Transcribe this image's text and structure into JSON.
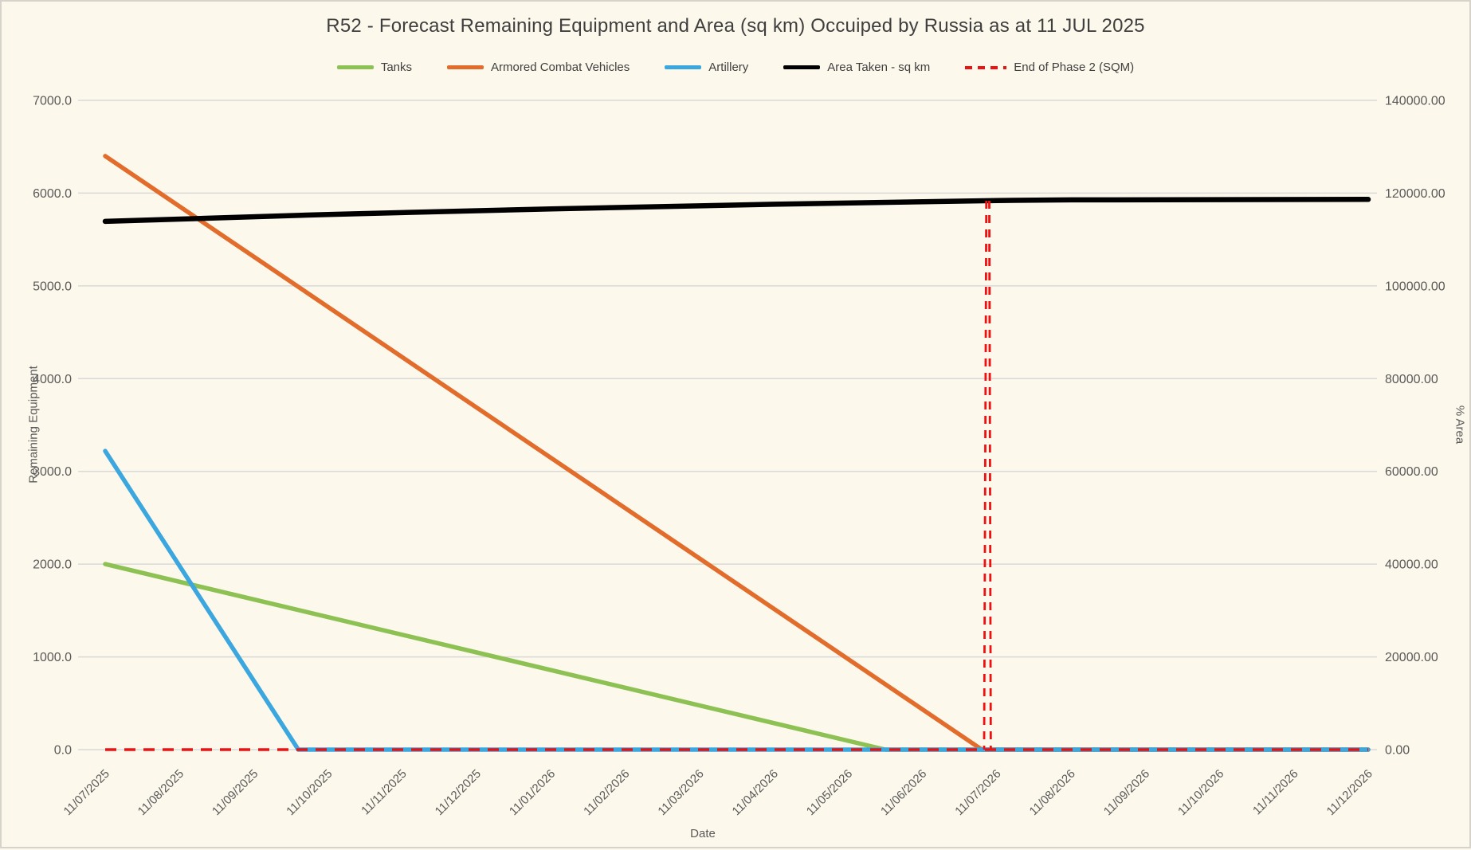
{
  "theme": {
    "background": "#fdf8ec",
    "border": "#d6d3cc",
    "grid": "#d9d9d9",
    "tick_text": "#595959",
    "title_text": "#3f3f3f",
    "marker_red": "#ee1111"
  },
  "chart_data": {
    "type": "line",
    "title": "R52 - Forecast Remaining Equipment and Area (sq km) Occuiped by Russia as at 11 JUL 2025",
    "xlabel": "Date",
    "ylabel_left": "Remaining Equipment",
    "ylabel_right": "% Area",
    "grid": true,
    "legend_position": "top",
    "x_categories": [
      "11/07/2025",
      "11/08/2025",
      "11/09/2025",
      "11/10/2025",
      "11/11/2025",
      "11/12/2025",
      "11/01/2026",
      "11/02/2026",
      "11/03/2026",
      "11/04/2026",
      "11/05/2026",
      "11/06/2026",
      "11/07/2026",
      "11/08/2026",
      "11/09/2026",
      "11/10/2026",
      "11/11/2026",
      "11/12/2026"
    ],
    "y_left": {
      "min": 0,
      "max": 7000,
      "step": 1000,
      "tick_labels": [
        "0.0",
        "1000.0",
        "2000.0",
        "3000.0",
        "4000.0",
        "5000.0",
        "6000.0",
        "7000.0"
      ]
    },
    "y_right": {
      "min": 0,
      "max": 140000,
      "step": 20000,
      "tick_labels": [
        "0.00",
        "20000.00",
        "40000.00",
        "60000.00",
        "80000.00",
        "100000.00",
        "120000.00",
        "140000.00"
      ]
    },
    "series": [
      {
        "name": "Tanks",
        "color": "#8dc153",
        "axis": "left",
        "style": "solid",
        "points": [
          [
            0,
            2000
          ],
          [
            10.5,
            0
          ],
          [
            17,
            0
          ]
        ],
        "monthly_values": [
          2000,
          1810,
          1619,
          1429,
          1238,
          1048,
          857,
          667,
          476,
          286,
          95,
          0,
          0,
          0,
          0,
          0,
          0,
          0
        ]
      },
      {
        "name": "Armored Combat Vehicles",
        "color": "#e16c2b",
        "axis": "left",
        "style": "solid",
        "points": [
          [
            0,
            6400
          ],
          [
            11.8,
            0
          ],
          [
            17,
            0
          ]
        ],
        "monthly_values": [
          6400,
          5858,
          5315,
          4773,
          4230,
          3688,
          3146,
          2603,
          2061,
          1519,
          976,
          434,
          0,
          0,
          0,
          0,
          0,
          0
        ]
      },
      {
        "name": "Artillery",
        "color": "#3ba7de",
        "axis": "left",
        "style": "solid",
        "points": [
          [
            0,
            3220
          ],
          [
            2.6,
            0
          ],
          [
            17,
            0
          ]
        ],
        "monthly_values": [
          3220,
          1982,
          743,
          0,
          0,
          0,
          0,
          0,
          0,
          0,
          0,
          0,
          0,
          0,
          0,
          0,
          0,
          0
        ]
      },
      {
        "name": "Area Taken - sq km",
        "color": "#000000",
        "axis": "right",
        "style": "solid",
        "points": [
          [
            0,
            113900
          ],
          [
            3,
            115400
          ],
          [
            6,
            116600
          ],
          [
            9,
            117600
          ],
          [
            12,
            118400
          ],
          [
            13,
            118550
          ],
          [
            17,
            118650
          ]
        ],
        "monthly_values": [
          113900,
          114400,
          114900,
          115400,
          115800,
          116200,
          116600,
          116930,
          117270,
          117600,
          117870,
          118130,
          118400,
          118550,
          118580,
          118600,
          118630,
          118650
        ]
      }
    ],
    "markers": {
      "name": "End of Phase 2 (SQM)",
      "color": "#ee1111",
      "horizontal_line": {
        "y_value": 0,
        "x_index_start": 0,
        "x_index_end": 17
      },
      "vertical_lines": [
        {
          "x_index_top": 11.86,
          "x_index_bottom": 11.83,
          "y_top_value": 118350,
          "y_bottom_value": 0
        },
        {
          "x_index_top": 11.9,
          "x_index_bottom": 11.92,
          "y_top_value": 118350,
          "y_bottom_value": 0
        }
      ]
    },
    "legend_items": [
      {
        "label": "Tanks",
        "color": "#8dc153",
        "style": "solid"
      },
      {
        "label": "Armored Combat Vehicles",
        "color": "#e16c2b",
        "style": "solid"
      },
      {
        "label": "Artillery",
        "color": "#3ba7de",
        "style": "solid"
      },
      {
        "label": "Area Taken - sq km",
        "color": "#000000",
        "style": "solid"
      },
      {
        "label": "End of Phase 2 (SQM)",
        "color": "#ee1111",
        "style": "dashed"
      }
    ]
  }
}
